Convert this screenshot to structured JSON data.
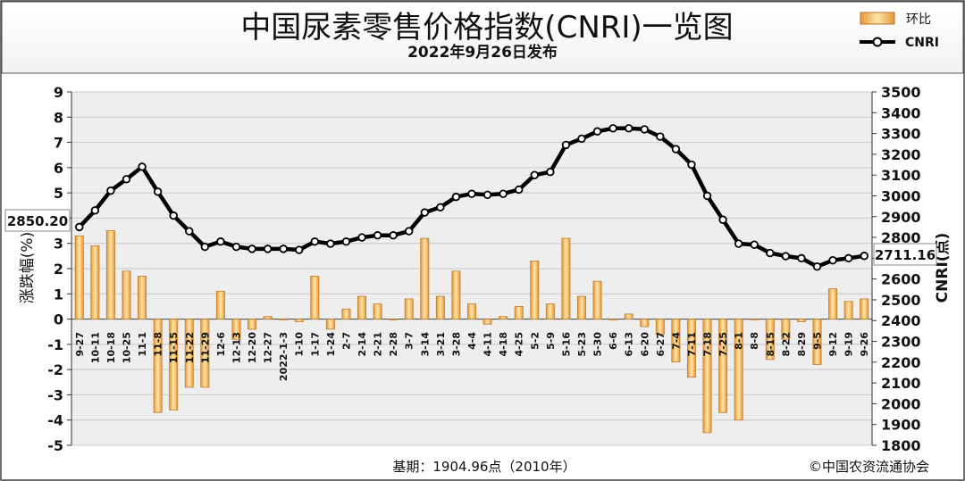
{
  "header": {
    "title": "中国尿素零售价格指数(CNRI)一览图",
    "subtitle": "2022年9月26日发布"
  },
  "footer": {
    "base_note": "基期：1904.96点（2010年）",
    "copyright": "©中国农资流通协会"
  },
  "chart_data": {
    "type": "bar+line",
    "title": "中国尿素零售价格指数(CNRI)一览图",
    "subtitle": "2022年9月26日发布",
    "ylabel_left": "涨跌幅(%)",
    "ylabel_right": "CNRI(点)",
    "ylim_left": [
      -5,
      9
    ],
    "ylim_right": [
      1800,
      3500
    ],
    "yticks_left": [
      -5,
      -4,
      -3,
      -2,
      -1,
      0,
      1,
      2,
      3,
      4,
      5,
      6,
      7,
      8,
      9
    ],
    "yticks_right": [
      1800,
      1900,
      2000,
      2100,
      2200,
      2300,
      2400,
      2500,
      2600,
      2700,
      2800,
      2900,
      3000,
      3100,
      3200,
      3300,
      3400,
      3500
    ],
    "grid": true,
    "legend_position": "top-right",
    "categories": [
      "9-27",
      "10-11",
      "10-18",
      "10-25",
      "11-1",
      "11-8",
      "11-15",
      "11-22",
      "11-29",
      "12-6",
      "12-13",
      "12-20",
      "12-27",
      "2022-1-3",
      "1-10",
      "1-17",
      "1-24",
      "2-7",
      "2-14",
      "2-21",
      "2-28",
      "3-7",
      "3-14",
      "3-21",
      "3-28",
      "4-4",
      "4-11",
      "4-18",
      "4-25",
      "5-2",
      "5-9",
      "5-16",
      "5-23",
      "5-30",
      "6-6",
      "6-13",
      "6-20",
      "6-27",
      "7-4",
      "7-11",
      "7-18",
      "7-25",
      "8-1",
      "8-8",
      "8-15",
      "8-22",
      "8-29",
      "9-5",
      "9-12",
      "9-19",
      "9-26"
    ],
    "series": [
      {
        "name": "环比",
        "kind": "bar",
        "axis": "left",
        "values": [
          3.3,
          2.9,
          3.5,
          1.9,
          1.7,
          -3.7,
          -3.6,
          -2.7,
          -2.7,
          1.1,
          -0.8,
          -0.4,
          0.1,
          0.0,
          -0.1,
          1.7,
          -0.4,
          0.4,
          0.9,
          0.6,
          0.0,
          0.8,
          3.2,
          0.9,
          1.9,
          0.6,
          -0.2,
          0.1,
          0.5,
          2.3,
          0.6,
          3.2,
          0.9,
          1.5,
          0.0,
          0.2,
          -0.3,
          -0.6,
          -1.7,
          -2.3,
          -4.5,
          -3.7,
          -4.0,
          0.0,
          -1.6,
          -0.8,
          -0.1,
          -1.8,
          1.2,
          0.7,
          0.8
        ]
      },
      {
        "name": "CNRI",
        "kind": "line",
        "axis": "right",
        "values": [
          2850.2,
          2930,
          3025,
          3080,
          3140,
          3020,
          2905,
          2830,
          2755,
          2780,
          2755,
          2745,
          2745,
          2745,
          2740,
          2780,
          2770,
          2780,
          2800,
          2810,
          2810,
          2830,
          2920,
          2945,
          2995,
          3010,
          3005,
          3010,
          3030,
          3100,
          3115,
          3245,
          3275,
          3310,
          3325,
          3325,
          3320,
          3285,
          3225,
          3150,
          3000,
          2885,
          2770,
          2765,
          2725,
          2710,
          2700,
          2660,
          2690,
          2700,
          2711.16
        ]
      }
    ],
    "annotations": [
      "2850.20",
      "2711.16"
    ]
  }
}
